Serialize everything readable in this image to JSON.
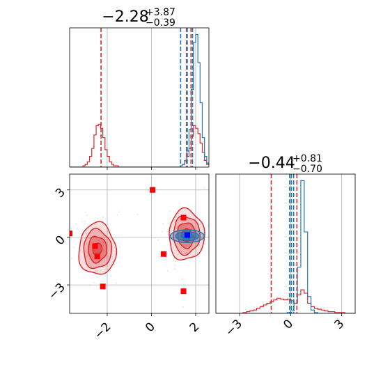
{
  "chart_data": [
    {
      "panel": "top-left",
      "type": "histogram",
      "title": {
        "value": "−2.28",
        "plus": "+3.87",
        "minus": "−0.39"
      },
      "xlim": [
        -3.7,
        2.6
      ],
      "grid": true,
      "series": [
        {
          "name": "",
          "color": "#d62728",
          "bin_start": -3.7,
          "bin_width": 0.1,
          "counts": [
            0,
            0,
            0,
            0,
            0,
            0,
            1,
            2,
            4,
            8,
            14,
            24,
            31,
            32,
            29,
            22,
            13,
            8,
            4,
            2,
            1,
            1,
            0,
            0,
            0,
            0,
            0,
            0,
            0,
            0,
            0,
            0,
            0,
            0,
            0,
            0,
            0,
            0,
            0,
            0,
            0,
            0,
            0,
            0,
            0,
            0,
            0,
            0,
            0,
            0,
            1,
            2,
            4,
            8,
            14,
            23,
            31,
            29,
            25,
            18,
            11,
            5,
            2
          ]
        },
        {
          "name": "",
          "color": "#1f77b4",
          "bin_start": -3.7,
          "bin_width": 0.1,
          "counts": [
            0,
            0,
            0,
            0,
            0,
            0,
            0,
            0,
            0,
            0,
            0,
            0,
            0,
            0,
            0,
            0,
            0,
            0,
            0,
            0,
            0,
            0,
            0,
            0,
            0,
            0,
            0,
            0,
            0,
            0,
            0,
            0,
            0,
            0,
            0,
            0,
            0,
            0,
            0,
            0,
            0,
            0,
            0,
            0,
            0,
            0,
            0,
            0,
            0,
            0,
            1,
            2,
            5,
            12,
            28,
            58,
            93,
            99,
            78,
            48,
            22,
            8,
            3
          ]
        }
      ],
      "quantiles": [
        {
          "color": "#d62728",
          "values": [
            -2.28,
            1.59,
            1.79
          ]
        },
        {
          "color": "#1f77b4",
          "values": [
            1.32,
            1.62,
            1.86
          ]
        }
      ]
    },
    {
      "panel": "bottom-right",
      "type": "histogram",
      "title": {
        "value": "−0.44",
        "plus": "+0.81",
        "minus": "−0.70"
      },
      "xlim": [
        -4.4,
        3.8
      ],
      "xticks": [
        "−3",
        "0",
        "3"
      ],
      "grid": true,
      "series": [
        {
          "name": "",
          "color": "#d62728",
          "bin_start": -4.4,
          "bin_width": 0.2,
          "counts": [
            0,
            0,
            0,
            0,
            0,
            0,
            0,
            0,
            1,
            2,
            3,
            4,
            6,
            8,
            10,
            12,
            14,
            16,
            18,
            17,
            16,
            17,
            15,
            12,
            22,
            28,
            24,
            12,
            8,
            6,
            5,
            4,
            3,
            2,
            2,
            1,
            1,
            1,
            0,
            0,
            0
          ]
        },
        {
          "name": "",
          "color": "#1f77b4",
          "bin_start": -4.4,
          "bin_width": 0.2,
          "counts": [
            0,
            0,
            0,
            0,
            0,
            0,
            0,
            0,
            0,
            0,
            0,
            0,
            0,
            0,
            0,
            0,
            0,
            0,
            0,
            0,
            0,
            1,
            3,
            12,
            55,
            158,
            97,
            20,
            4,
            1,
            0,
            0,
            0,
            0,
            0,
            0,
            0,
            0,
            0,
            0,
            0
          ]
        }
      ],
      "quantiles": [
        {
          "color": "#d62728",
          "values": [
            -1.14,
            0.37
          ]
        },
        {
          "color": "#1f77b4",
          "values": [
            -0.06,
            0.05,
            0.18
          ]
        }
      ]
    },
    {
      "panel": "bottom-left",
      "type": "contour-scatter",
      "xlim": [
        -3.7,
        2.6
      ],
      "ylim": [
        -4.8,
        4.0
      ],
      "xticks": [
        "−2",
        "0",
        "2"
      ],
      "yticks": [
        "3",
        "0",
        "−3"
      ],
      "grid": true,
      "red_blobs": [
        {
          "cx": -2.45,
          "cy": -0.75,
          "sx": 0.42,
          "sy": 0.82,
          "color": "#d62728"
        },
        {
          "cx": 1.58,
          "cy": 0.15,
          "sx": 0.4,
          "sy": 0.8,
          "color": "#d62728"
        }
      ],
      "blue_blob": {
        "cx": 1.62,
        "cy": 0.08,
        "sx": 0.3,
        "sy": 0.28,
        "color": "#1f77b4"
      },
      "markers": [
        {
          "x": 0.05,
          "y": 3.0,
          "color": "#ff0000"
        },
        {
          "x": -3.7,
          "y": 0.25,
          "color": "#ff0000"
        },
        {
          "x": -2.55,
          "y": -0.55,
          "color": "#ff0000"
        },
        {
          "x": -2.45,
          "y": -1.2,
          "color": "#ff0000"
        },
        {
          "x": -2.2,
          "y": -3.1,
          "color": "#ff0000"
        },
        {
          "x": 0.55,
          "y": -1.05,
          "color": "#ff0000"
        },
        {
          "x": 1.45,
          "y": 1.25,
          "color": "#ff0000"
        },
        {
          "x": 1.45,
          "y": -3.4,
          "color": "#ff0000"
        },
        {
          "x": 1.62,
          "y": 0.15,
          "color": "#0000ff"
        }
      ]
    }
  ]
}
